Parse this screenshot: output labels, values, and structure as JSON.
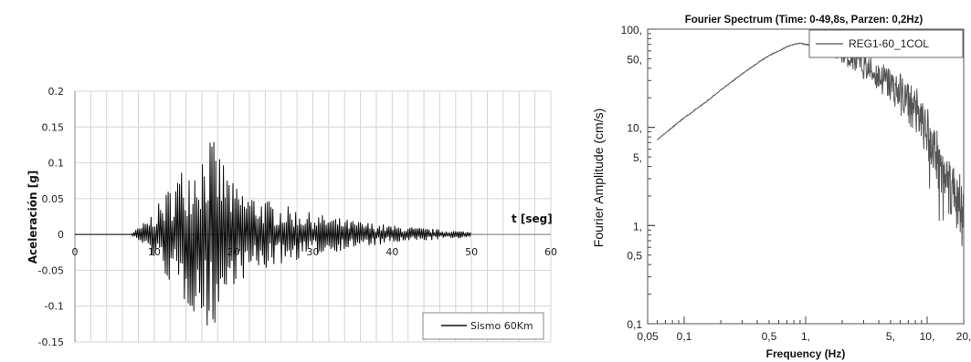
{
  "chart_data": [
    {
      "type": "line",
      "title": "",
      "ylabel": "Aceleración [g]",
      "xlabel": "t [seg]",
      "xlim": [
        0,
        60
      ],
      "ylim": [
        -0.15,
        0.2
      ],
      "x_ticks": [
        "0",
        "10",
        "20",
        "30",
        "40",
        "50",
        "60"
      ],
      "y_ticks": [
        "0.2",
        "0.15",
        "0.1",
        "0.05",
        "0",
        "-0.05",
        "-0.1",
        "-0.15"
      ],
      "grid": true,
      "legend": "bottom-right",
      "series": [
        {
          "name": "Sismo 60Km",
          "color": "#111111",
          "envelope": {
            "t": [
              0,
              7,
              9,
              11,
              13,
              15,
              17,
              19,
              20,
              22,
              25,
              30,
              35,
              40,
              45,
              50,
              60
            ],
            "amp": [
              0,
              0.0,
              0.02,
              0.05,
              0.09,
              0.11,
              0.14,
              0.1,
              0.07,
              0.06,
              0.045,
              0.03,
              0.02,
              0.013,
              0.008,
              0.004,
              0
            ]
          }
        }
      ]
    },
    {
      "type": "line",
      "title": "Fourier Spectrum (Time: 0-49,8s, Parzen: 0,2Hz)",
      "xlabel": "Frequency (Hz)",
      "ylabel": "Fourier Amplitude (cm/s)",
      "xscale": "log",
      "yscale": "log",
      "xlim": [
        0.05,
        20
      ],
      "ylim": [
        0.1,
        100
      ],
      "x_ticks": [
        "0,05",
        "0,1",
        "0,5",
        "1,",
        "5,",
        "10,",
        "20,"
      ],
      "y_ticks": [
        "100,",
        "50,",
        "10,",
        "5,",
        "1,",
        "0,5",
        "0,1"
      ],
      "grid": false,
      "legend": "top-right",
      "series": [
        {
          "name": "REG1-60_1COL",
          "color": "#555555",
          "x": [
            0.06,
            0.08,
            0.1,
            0.15,
            0.2,
            0.3,
            0.4,
            0.5,
            0.6,
            0.7,
            0.8,
            0.9,
            1.0,
            1.2,
            1.5,
            2.0,
            2.5,
            3.0,
            4.0,
            5.0,
            6.0,
            8.0,
            10.0,
            12.0,
            15.0,
            20.0
          ],
          "y": [
            7.5,
            10,
            12.5,
            18,
            24,
            35,
            45,
            54,
            60,
            66,
            70,
            72,
            70,
            68,
            64,
            55,
            48,
            42,
            33,
            27,
            22,
            15,
            9,
            5,
            3,
            1.3
          ]
        }
      ]
    }
  ]
}
